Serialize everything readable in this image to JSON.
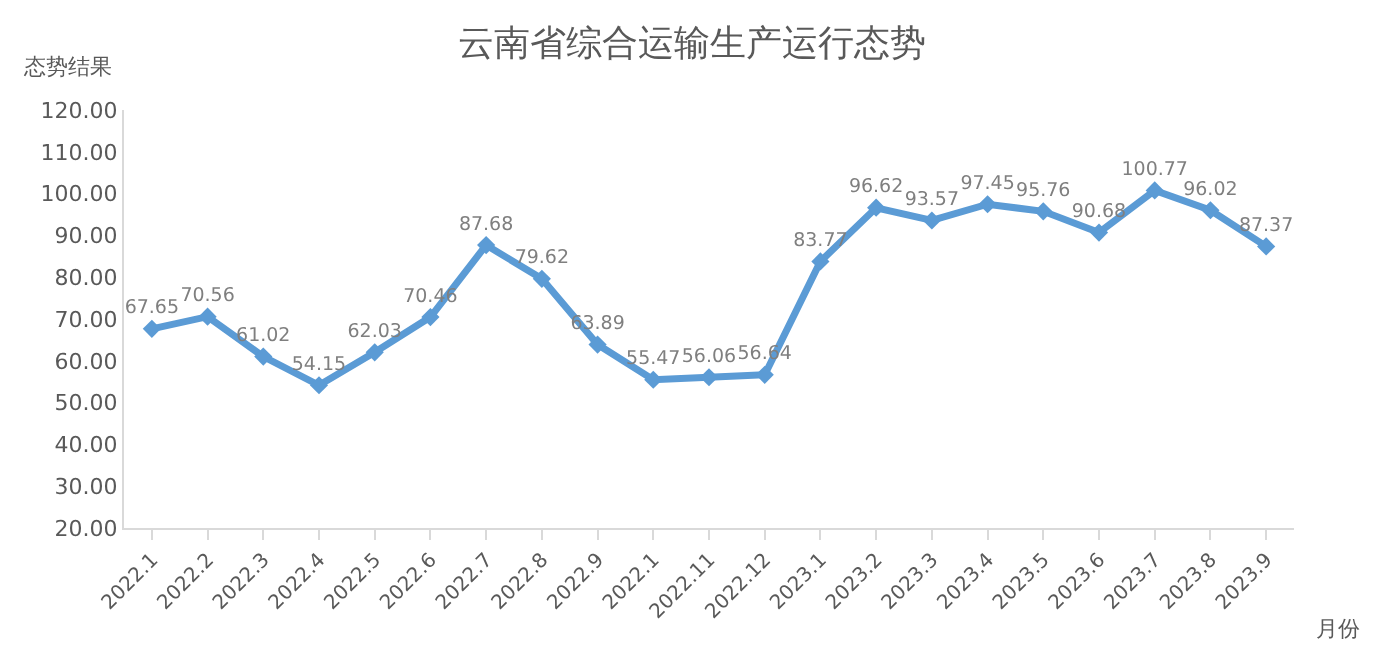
{
  "chart_data": {
    "type": "line",
    "title": "云南省综合运输生产运行态势",
    "xlabel": "月份",
    "ylabel": "态势结果",
    "categories": [
      "2022.1",
      "2022.2",
      "2022.3",
      "2022.4",
      "2022.5",
      "2022.6",
      "2022.7",
      "2022.8",
      "2022.9",
      "2022.1",
      "2022.11",
      "2022.12",
      "2023.1",
      "2023.2",
      "2023.3",
      "2023.4",
      "2023.5",
      "2023.6",
      "2023.7",
      "2023.8",
      "2023.9"
    ],
    "series": [
      {
        "color": "#5b9bd5",
        "values": [
          67.65,
          70.56,
          61.02,
          54.15,
          62.03,
          70.46,
          87.68,
          79.62,
          63.89,
          55.47,
          56.06,
          56.64,
          83.77,
          96.62,
          93.57,
          97.45,
          95.76,
          90.68,
          100.77,
          96.02,
          87.37
        ]
      }
    ],
    "ylim": [
      20,
      120
    ],
    "yticks": [
      {
        "value": 20,
        "label": "20.00"
      },
      {
        "value": 30,
        "label": "30.00"
      },
      {
        "value": 40,
        "label": "40.00"
      },
      {
        "value": 50,
        "label": "50.00"
      },
      {
        "value": 60,
        "label": "60.00"
      },
      {
        "value": 70,
        "label": "70.00"
      },
      {
        "value": 80,
        "label": "80.00"
      },
      {
        "value": 90,
        "label": "90.00"
      },
      {
        "value": 100,
        "label": "100.00"
      },
      {
        "value": 110,
        "label": "110.00"
      },
      {
        "value": 120,
        "label": "120.00"
      }
    ],
    "data_labels": true,
    "legend": false,
    "marker": "diamond",
    "line_style": "solid"
  }
}
